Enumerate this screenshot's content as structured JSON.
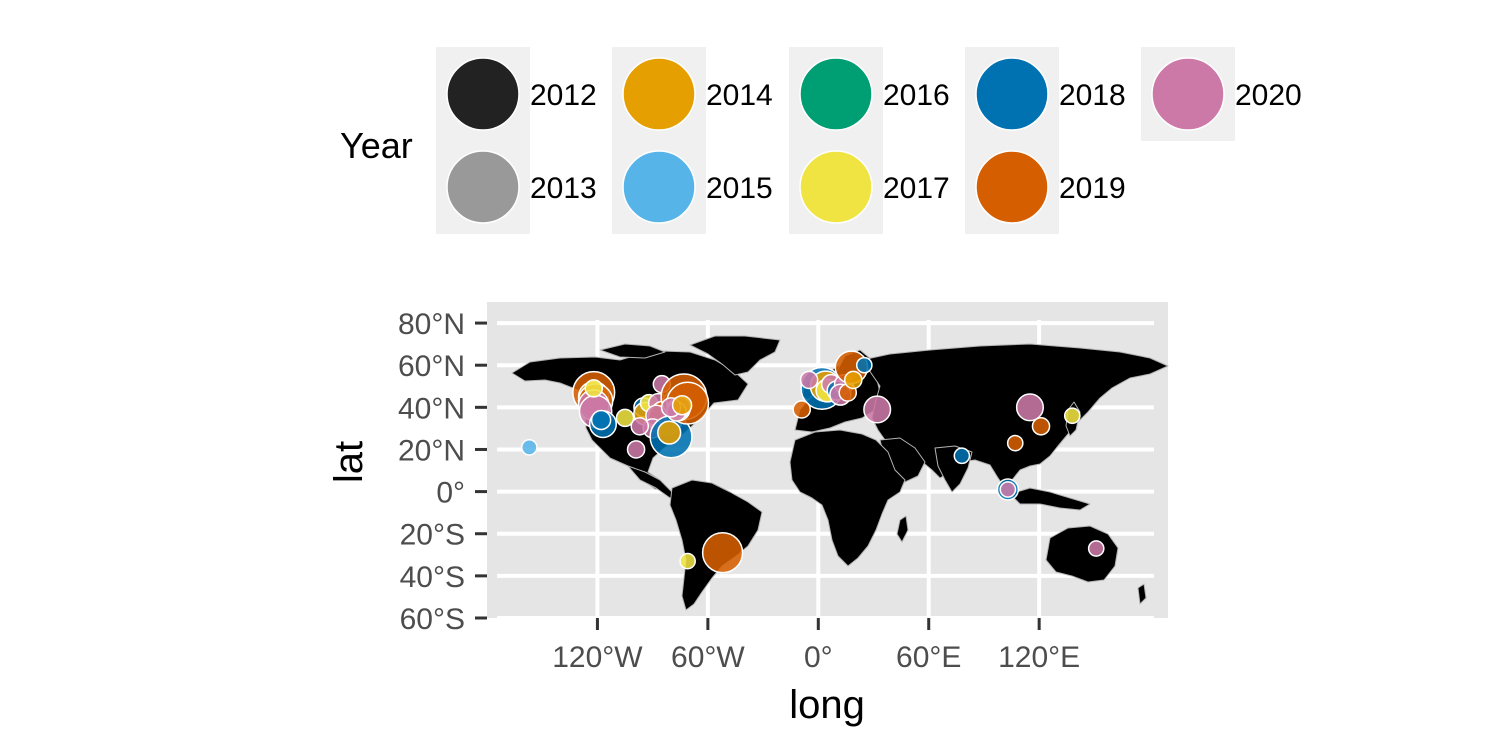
{
  "chart_data": {
    "type": "scatter",
    "subtype": "bubble-map",
    "xlabel": "long",
    "ylabel": "lat",
    "xlim": [
      -180,
      190
    ],
    "ylim": [
      -60,
      90
    ],
    "x_ticks": [
      {
        "value": -120,
        "label": "120°W"
      },
      {
        "value": -60,
        "label": "60°W"
      },
      {
        "value": 0,
        "label": "0°"
      },
      {
        "value": 60,
        "label": "60°E"
      },
      {
        "value": 120,
        "label": "120°E"
      }
    ],
    "y_ticks": [
      {
        "value": 80,
        "label": "80°N"
      },
      {
        "value": 60,
        "label": "60°N"
      },
      {
        "value": 40,
        "label": "40°N"
      },
      {
        "value": 20,
        "label": "20°N"
      },
      {
        "value": 0,
        "label": "0°"
      },
      {
        "value": -20,
        "label": "20°S"
      },
      {
        "value": -40,
        "label": "40°S"
      },
      {
        "value": -60,
        "label": "60°S"
      }
    ],
    "legend": {
      "title": "Year",
      "position": "top",
      "entries": [
        {
          "label": "2012",
          "color": "#222222"
        },
        {
          "label": "2013",
          "color": "#999999"
        },
        {
          "label": "2014",
          "color": "#E69F00"
        },
        {
          "label": "2015",
          "color": "#56B4E9"
        },
        {
          "label": "2016",
          "color": "#009E73"
        },
        {
          "label": "2017",
          "color": "#F0E442"
        },
        {
          "label": "2018",
          "color": "#0072B2"
        },
        {
          "label": "2019",
          "color": "#D55E00"
        },
        {
          "label": "2020",
          "color": "#CC79A7"
        }
      ]
    },
    "grid": true,
    "panel_background": "#E5E5E5",
    "land_color": "#000000",
    "border_color": "#B3B3B3",
    "points": [
      {
        "year": "2019",
        "long": -122,
        "lat": 47,
        "size": 2.2
      },
      {
        "year": "2014",
        "long": -122,
        "lat": 45,
        "size": 1.6
      },
      {
        "year": "2019",
        "long": -121,
        "lat": 43,
        "size": 1.8
      },
      {
        "year": "2020",
        "long": -122,
        "lat": 41,
        "size": 1.6
      },
      {
        "year": "2020",
        "long": -121,
        "lat": 38,
        "size": 1.7
      },
      {
        "year": "2018",
        "long": -117,
        "lat": 32,
        "size": 1.4
      },
      {
        "year": "2018",
        "long": -118,
        "lat": 34,
        "size": 1.0
      },
      {
        "year": "2017",
        "long": -122,
        "lat": 49,
        "size": 0.9
      },
      {
        "year": "2015",
        "long": -157,
        "lat": 21,
        "size": 0.8
      },
      {
        "year": "2017",
        "long": -105,
        "lat": 35,
        "size": 0.9
      },
      {
        "year": "2018",
        "long": -95,
        "lat": 40,
        "size": 1.0
      },
      {
        "year": "2014",
        "long": -94,
        "lat": 37,
        "size": 1.2
      },
      {
        "year": "2017",
        "long": -92,
        "lat": 42,
        "size": 0.9
      },
      {
        "year": "2020",
        "long": -87,
        "lat": 42,
        "size": 1.0
      },
      {
        "year": "2014",
        "long": -84,
        "lat": 34,
        "size": 1.6
      },
      {
        "year": "2019",
        "long": -83,
        "lat": 35,
        "size": 1.8
      },
      {
        "year": "2020",
        "long": -88,
        "lat": 36,
        "size": 1.1
      },
      {
        "year": "2020",
        "long": -90,
        "lat": 30,
        "size": 1.0
      },
      {
        "year": "2018",
        "long": -80,
        "lat": 26,
        "size": 2.2
      },
      {
        "year": "2014",
        "long": -81,
        "lat": 28,
        "size": 1.2
      },
      {
        "year": "2020",
        "long": -99,
        "lat": 20,
        "size": 0.9
      },
      {
        "year": "2020",
        "long": -97,
        "lat": 31,
        "size": 0.9
      },
      {
        "year": "2020",
        "long": -85,
        "lat": 51,
        "size": 0.9
      },
      {
        "year": "2018",
        "long": -79,
        "lat": 43,
        "size": 1.0
      },
      {
        "year": "2019",
        "long": -73,
        "lat": 45,
        "size": 2.4
      },
      {
        "year": "2019",
        "long": -71,
        "lat": 42,
        "size": 2.2
      },
      {
        "year": "2017",
        "long": -76,
        "lat": 39,
        "size": 1.2
      },
      {
        "year": "2020",
        "long": -75,
        "lat": 40,
        "size": 1.1
      },
      {
        "year": "2020",
        "long": -77,
        "lat": 38,
        "size": 1.0
      },
      {
        "year": "2020",
        "long": -80,
        "lat": 40,
        "size": 1.0
      },
      {
        "year": "2014",
        "long": -74,
        "lat": 41,
        "size": 1.0
      },
      {
        "year": "2019",
        "long": -52,
        "lat": -29,
        "size": 2.1
      },
      {
        "year": "2017",
        "long": -71,
        "lat": -33,
        "size": 0.8
      },
      {
        "year": "2018",
        "long": 2,
        "lat": 49,
        "size": 2.2
      },
      {
        "year": "2014",
        "long": 4,
        "lat": 50,
        "size": 1.6
      },
      {
        "year": "2017",
        "long": 5,
        "lat": 48,
        "size": 1.2
      },
      {
        "year": "2020",
        "long": -5,
        "lat": 53,
        "size": 0.9
      },
      {
        "year": "2019",
        "long": -9,
        "lat": 39,
        "size": 0.9
      },
      {
        "year": "2020",
        "long": 7,
        "lat": 51,
        "size": 1.0
      },
      {
        "year": "2018",
        "long": 10,
        "lat": 48,
        "size": 1.0
      },
      {
        "year": "2020",
        "long": 14,
        "lat": 51,
        "size": 1.0
      },
      {
        "year": "2020",
        "long": 12,
        "lat": 46,
        "size": 1.1
      },
      {
        "year": "2019",
        "long": 16,
        "lat": 47,
        "size": 0.9
      },
      {
        "year": "2019",
        "long": 18,
        "lat": 59,
        "size": 1.7
      },
      {
        "year": "2014",
        "long": 19,
        "lat": 53,
        "size": 0.9
      },
      {
        "year": "2018",
        "long": 25,
        "lat": 60,
        "size": 0.8
      },
      {
        "year": "2020",
        "long": 32,
        "lat": 39,
        "size": 1.4
      },
      {
        "year": "2018",
        "long": 78,
        "lat": 17,
        "size": 0.8
      },
      {
        "year": "2019",
        "long": 107,
        "lat": 23,
        "size": 0.8
      },
      {
        "year": "2020",
        "long": 115,
        "lat": 40,
        "size": 1.4
      },
      {
        "year": "2019",
        "long": 121,
        "lat": 31,
        "size": 0.9
      },
      {
        "year": "2017",
        "long": 138,
        "lat": 36,
        "size": 0.8
      },
      {
        "year": "2018",
        "long": 103,
        "lat": 1,
        "size": 1.1
      },
      {
        "year": "2020",
        "long": 103,
        "lat": 1,
        "size": 0.8
      },
      {
        "year": "2020",
        "long": 151,
        "lat": -27,
        "size": 0.8
      }
    ]
  }
}
